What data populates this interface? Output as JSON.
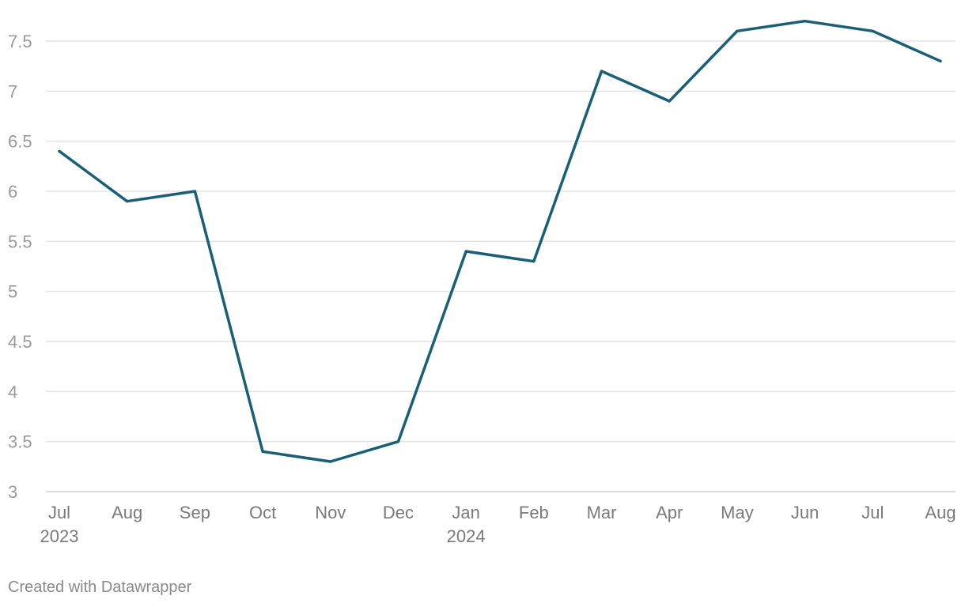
{
  "chart_data": {
    "type": "line",
    "categories": [
      "Jul 2023",
      "Aug 2023",
      "Sep 2023",
      "Oct 2023",
      "Nov 2023",
      "Dec 2023",
      "Jan 2024",
      "Feb 2024",
      "Mar 2024",
      "Apr 2024",
      "May 2024",
      "Jun 2024",
      "Jul 2024",
      "Aug 2024"
    ],
    "x_tick_labels": [
      {
        "month": "Jul",
        "year": "2023"
      },
      {
        "month": "Aug",
        "year": ""
      },
      {
        "month": "Sep",
        "year": ""
      },
      {
        "month": "Oct",
        "year": ""
      },
      {
        "month": "Nov",
        "year": ""
      },
      {
        "month": "Dec",
        "year": ""
      },
      {
        "month": "Jan",
        "year": "2024"
      },
      {
        "month": "Feb",
        "year": ""
      },
      {
        "month": "Mar",
        "year": ""
      },
      {
        "month": "Apr",
        "year": ""
      },
      {
        "month": "May",
        "year": ""
      },
      {
        "month": "Jun",
        "year": ""
      },
      {
        "month": "Jul",
        "year": ""
      },
      {
        "month": "Aug",
        "year": ""
      }
    ],
    "series": [
      {
        "values": [
          6.4,
          5.9,
          6.0,
          3.4,
          3.3,
          3.5,
          5.4,
          5.3,
          7.2,
          6.9,
          7.6,
          7.7,
          7.6,
          7.3
        ],
        "color": "#1a5f78"
      }
    ],
    "y_ticks": [
      "3",
      "3.5",
      "4",
      "4.5",
      "5",
      "5.5",
      "6",
      "6.5",
      "7",
      "7.5"
    ],
    "ylim": [
      3,
      7.8
    ],
    "grid": true,
    "legend": "none",
    "title": "",
    "xlabel": "",
    "ylabel": ""
  },
  "credit": "Created with Datawrapper"
}
